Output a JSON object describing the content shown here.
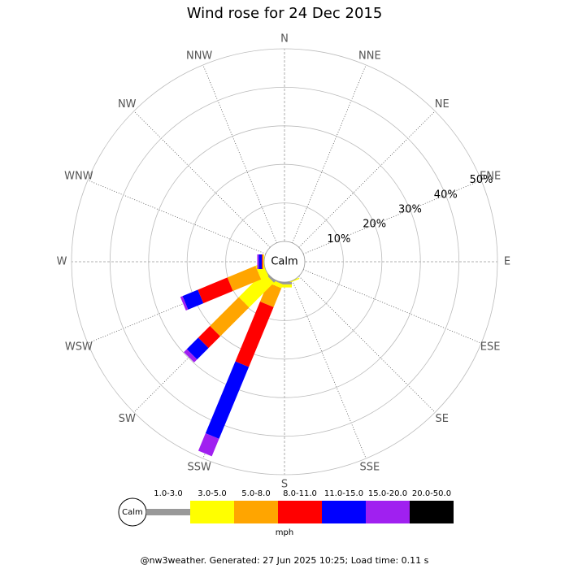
{
  "chart_data": {
    "type": "windrose",
    "title": "Wind rose for 24 Dec 2015",
    "categories": [
      "N",
      "NNE",
      "NE",
      "ENE",
      "E",
      "ESE",
      "SE",
      "SSE",
      "S",
      "SSW",
      "SW",
      "WSW",
      "W",
      "WNW",
      "NW",
      "NNW"
    ],
    "calm_label": "Calm",
    "rlim": [
      0,
      50
    ],
    "rticks": [
      {
        "value": 10,
        "label": "10%"
      },
      {
        "value": 20,
        "label": "20%"
      },
      {
        "value": 30,
        "label": "30%"
      },
      {
        "value": 40,
        "label": "40%"
      },
      {
        "value": 50,
        "label": "50%"
      }
    ],
    "series": [
      {
        "name": "1.0-3.0",
        "color": "#999999",
        "values": [
          0,
          0,
          0,
          0,
          0,
          0,
          0,
          0,
          0.6,
          0.3,
          0.5,
          0,
          0,
          0,
          0,
          0
        ]
      },
      {
        "name": "3.0-5.0",
        "color": "#ffff00",
        "values": [
          0,
          0,
          0,
          0,
          0,
          0,
          0,
          0.3,
          0.8,
          1.1,
          9.1,
          2.1,
          0.2,
          0,
          0,
          0
        ]
      },
      {
        "name": "5.0-8.0",
        "color": "#ffa500",
        "values": [
          0,
          0,
          0,
          0,
          0,
          0,
          0,
          0,
          0,
          5.3,
          10.6,
          7.9,
          0.2,
          0,
          0,
          0
        ]
      },
      {
        "name": "8.0-11.0",
        "color": "#ff0000",
        "values": [
          0,
          0,
          0,
          0,
          0,
          0,
          0,
          0,
          0,
          16.8,
          4.3,
          8.3,
          0.2,
          0,
          0,
          0
        ]
      },
      {
        "name": "11.0-15.0",
        "color": "#0000ff",
        "values": [
          0,
          0,
          0,
          0,
          0,
          0,
          0,
          0,
          0,
          20.2,
          4.2,
          4.3,
          0.8,
          0,
          0,
          0
        ]
      },
      {
        "name": "15.0-20.0",
        "color": "#a020f0",
        "values": [
          0,
          0,
          0,
          0,
          0,
          0,
          0,
          0,
          0,
          4.9,
          1.1,
          0.6,
          0.4,
          0,
          0,
          0
        ]
      },
      {
        "name": "20.0-50.0",
        "color": "#000000",
        "values": [
          0,
          0,
          0,
          0,
          0,
          0,
          0,
          0,
          0,
          0,
          0,
          0,
          0,
          0,
          0,
          0
        ]
      }
    ],
    "legend_unit": "mph",
    "footer": "@nw3weather. Generated: 27 Jun 2025 10:25; Load time: 0.11 s"
  }
}
